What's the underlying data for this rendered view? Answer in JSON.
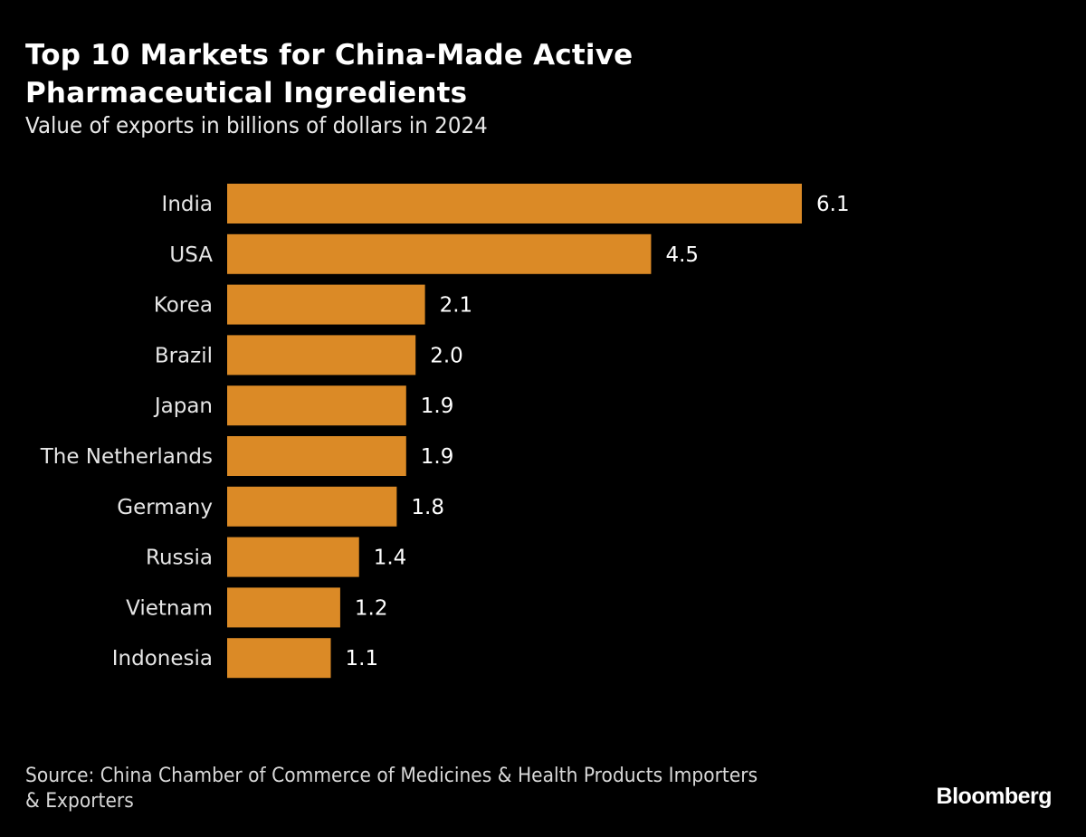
{
  "header": {
    "title": "Top 10 Markets for China-Made Active Pharmaceutical Ingredients",
    "subtitle": "Value of exports in billions of dollars in 2024"
  },
  "footer": {
    "source": "Source: China Chamber of Commerce of Medicines & Health Products Importers & Exporters",
    "brand": "Bloomberg"
  },
  "colors": {
    "background": "#000000",
    "bar": "#DB8A26",
    "text": "#FFFFFF"
  },
  "chart_data": {
    "type": "bar",
    "orientation": "horizontal",
    "title": "Top 10 Markets for China-Made Active Pharmaceutical Ingredients",
    "subtitle": "Value of exports in billions of dollars in 2024",
    "categories": [
      "India",
      "USA",
      "Korea",
      "Brazil",
      "Japan",
      "The Netherlands",
      "Germany",
      "Russia",
      "Vietnam",
      "Indonesia"
    ],
    "values": [
      6.1,
      4.5,
      2.1,
      2.0,
      1.9,
      1.9,
      1.8,
      1.4,
      1.2,
      1.1
    ],
    "value_labels": [
      "6.1",
      "4.5",
      "2.1",
      "2.0",
      "1.9",
      "1.9",
      "1.8",
      "1.4",
      "1.2",
      "1.1"
    ],
    "xlabel": "",
    "ylabel": "",
    "xlim": [
      0,
      6.1
    ],
    "grid": false,
    "legend": "none"
  }
}
